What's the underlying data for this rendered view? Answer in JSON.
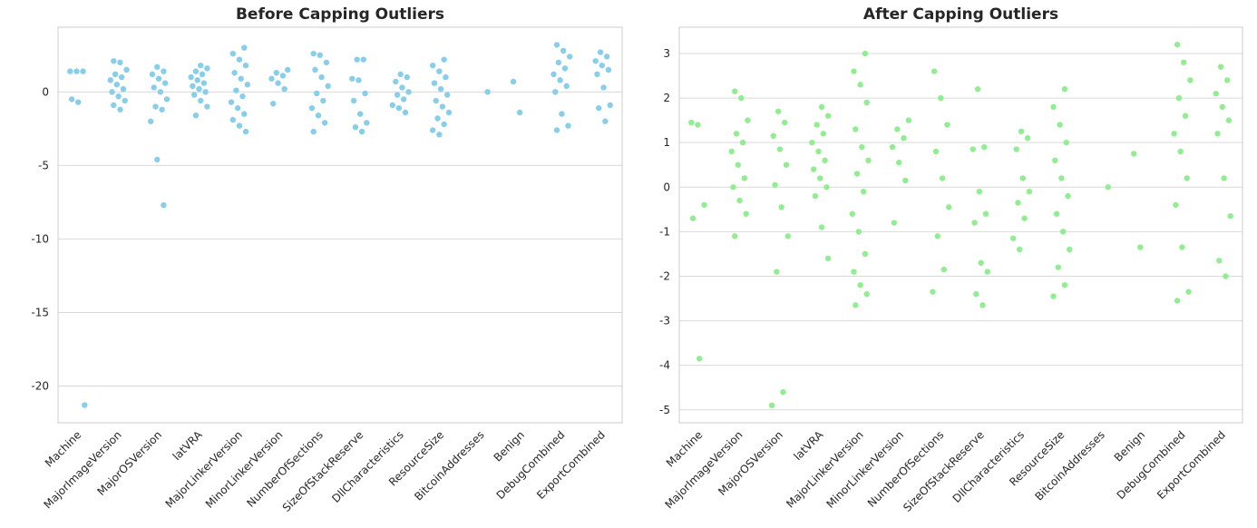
{
  "chart_data": [
    {
      "type": "strip",
      "title": "Before Capping Outliers",
      "color": "#87ceeb",
      "grid": true,
      "categories": [
        "Machine",
        "MajorImageVersion",
        "MajorOSVersion",
        "latVRA",
        "MajorLinkerVersion",
        "MinorLinkerVersion",
        "NumberOfSections",
        "SizeOfStackReserve",
        "DllCharacteristics",
        "ResourceSize",
        "BitcoinAddresses",
        "Benign",
        "DebugCombined",
        "ExportCombined"
      ],
      "values": [
        [
          1.4,
          1.4,
          1.4,
          -0.5,
          -0.7,
          -21.3
        ],
        [
          2.1,
          2.0,
          1.5,
          1.2,
          1.0,
          0.8,
          0.5,
          0.2,
          0,
          -0.3,
          -0.6,
          -0.9,
          -1.2
        ],
        [
          1.7,
          1.4,
          1.2,
          0.9,
          0.6,
          0.3,
          0,
          -0.5,
          -1.0,
          -1.2,
          -2.0,
          -4.6,
          -7.7
        ],
        [
          1.8,
          1.6,
          1.4,
          1.2,
          1.0,
          0.8,
          0.6,
          0.4,
          0.2,
          0,
          -0.2,
          -0.6,
          -1.0,
          -1.6
        ],
        [
          3.0,
          2.6,
          2.2,
          1.8,
          1.3,
          0.9,
          0.5,
          0.1,
          -0.3,
          -0.7,
          -1.1,
          -1.5,
          -1.9,
          -2.3,
          -2.7
        ],
        [
          1.5,
          1.3,
          1.1,
          0.9,
          0.6,
          0.2,
          -0.8
        ],
        [
          2.6,
          2.5,
          2.0,
          1.5,
          1.0,
          0.4,
          -0.1,
          -0.6,
          -1.1,
          -1.6,
          -2.1,
          -2.7
        ],
        [
          2.2,
          2.2,
          0.9,
          0.8,
          -0.1,
          -0.6,
          -1.5,
          -2.1,
          -2.4,
          -2.7
        ],
        [
          1.2,
          1.0,
          0.7,
          0.3,
          0,
          -0.2,
          -0.5,
          -0.9,
          -1.1,
          -1.4
        ],
        [
          2.2,
          1.8,
          1.4,
          1.0,
          0.6,
          0.2,
          -0.2,
          -0.6,
          -1.0,
          -1.4,
          -1.8,
          -2.2,
          -2.6,
          -2.9
        ],
        [
          0
        ],
        [
          0.7,
          -1.4
        ],
        [
          3.2,
          2.8,
          2.4,
          2.0,
          1.6,
          1.2,
          0.8,
          0.4,
          0,
          -1.5,
          -2.3,
          -2.6
        ],
        [
          2.7,
          2.4,
          2.1,
          1.8,
          1.5,
          1.2,
          0.3,
          -0.9,
          -1.1,
          -2.0
        ]
      ],
      "ylim": [
        -22.5,
        4.4
      ],
      "yticks": [
        -20,
        -15,
        -10,
        -5,
        0
      ]
    },
    {
      "type": "strip",
      "title": "After Capping Outliers",
      "color": "#90ee90",
      "grid": true,
      "categories": [
        "Machine",
        "MajorImageVersion",
        "MajorOSVersion",
        "latVRA",
        "MajorLinkerVersion",
        "MinorLinkerVersion",
        "NumberOfSections",
        "SizeOfStackReserve",
        "DllCharacteristics",
        "ResourceSize",
        "BitcoinAddresses",
        "Benign",
        "DebugCombined",
        "ExportCombined"
      ],
      "values": [
        [
          1.45,
          1.4,
          -0.4,
          -0.7,
          -3.85
        ],
        [
          2.15,
          2.0,
          1.5,
          1.2,
          1.0,
          0.8,
          0.5,
          0.2,
          0,
          -0.3,
          -0.6,
          -1.1
        ],
        [
          1.7,
          1.45,
          1.15,
          0.85,
          0.5,
          0.05,
          -0.45,
          -1.1,
          -1.9,
          -4.6,
          -4.9
        ],
        [
          1.8,
          1.6,
          1.4,
          1.2,
          1.0,
          0.8,
          0.6,
          0.4,
          0.2,
          0,
          -0.2,
          -0.9,
          -1.6
        ],
        [
          3.0,
          2.6,
          2.3,
          1.9,
          1.3,
          0.9,
          0.6,
          0.3,
          -0.1,
          -0.6,
          -1.0,
          -1.5,
          -1.9,
          -2.2,
          -2.4,
          -2.65
        ],
        [
          1.5,
          1.3,
          1.1,
          0.9,
          0.55,
          0.15,
          -0.8
        ],
        [
          2.6,
          2.0,
          1.4,
          0.8,
          0.2,
          -0.45,
          -1.1,
          -1.85,
          -2.35
        ],
        [
          2.2,
          0.9,
          0.85,
          -0.1,
          -0.6,
          -0.8,
          -1.7,
          -1.9,
          -2.4,
          -2.65
        ],
        [
          1.25,
          1.1,
          0.85,
          0.2,
          -0.1,
          -0.35,
          -0.7,
          -1.15,
          -1.4
        ],
        [
          2.2,
          1.8,
          1.4,
          1.0,
          0.6,
          0.2,
          -0.2,
          -0.6,
          -1.0,
          -1.4,
          -1.8,
          -2.2,
          -2.45
        ],
        [
          0
        ],
        [
          0.75,
          -1.35
        ],
        [
          3.2,
          2.8,
          2.4,
          2.0,
          1.6,
          1.2,
          0.8,
          0.2,
          -0.4,
          -1.35,
          -2.35,
          -2.55
        ],
        [
          2.7,
          2.4,
          2.1,
          1.8,
          1.5,
          1.2,
          0.2,
          -0.65,
          -1.65,
          -2.0
        ]
      ],
      "ylim": [
        -5.29,
        3.59
      ],
      "yticks": [
        -5,
        -4,
        -3,
        -2,
        -1,
        0,
        1,
        2,
        3
      ]
    }
  ]
}
